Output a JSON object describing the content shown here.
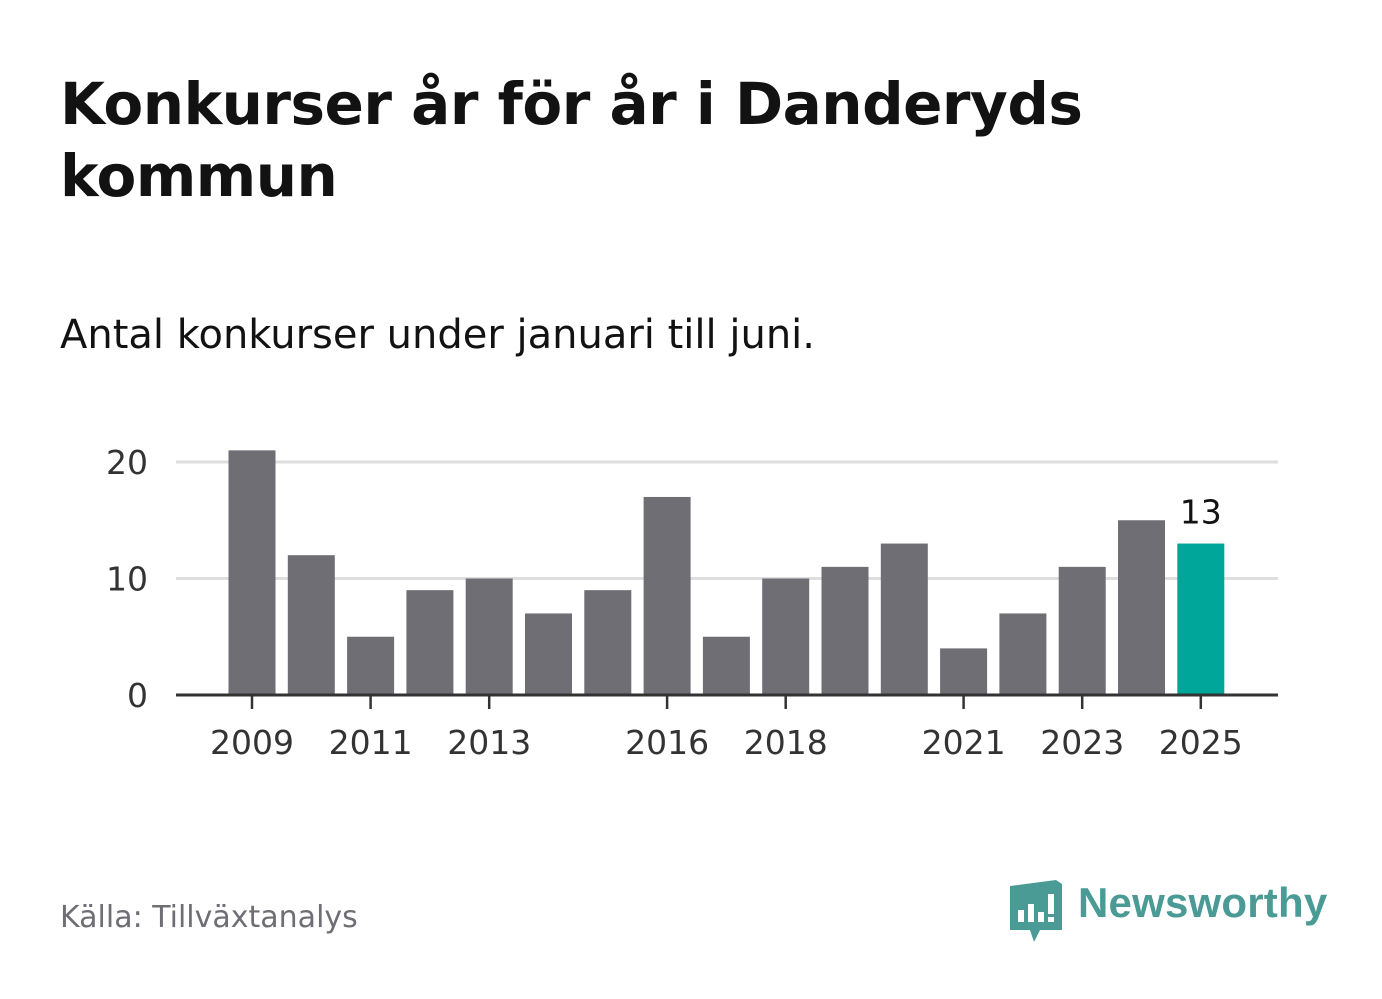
{
  "title": "Konkurser år för år i Danderyds kommun",
  "subtitle": "Antal konkurser under januari till juni.",
  "source": "Källa: Tillväxtanalys",
  "brand": {
    "name": "Newsworthy",
    "icon": "newsworthy-logo-icon"
  },
  "colors": {
    "bar": "#6f6e75",
    "highlight": "#00a69a",
    "grid": "#dedede",
    "axis": "#333333",
    "brand": "#4a9b95"
  },
  "chart_data": {
    "type": "bar",
    "categories": [
      "2009",
      "2010",
      "2011",
      "2012",
      "2013",
      "2014",
      "2015",
      "2016",
      "2017",
      "2018",
      "2019",
      "2020",
      "2021",
      "2022",
      "2023",
      "2024",
      "2025"
    ],
    "values": [
      21,
      12,
      5,
      9,
      10,
      7,
      9,
      17,
      5,
      10,
      11,
      13,
      4,
      7,
      11,
      15,
      13
    ],
    "highlight_index": 16,
    "data_labels": [
      {
        "category": "2025",
        "text": "13"
      }
    ],
    "x_tick_labels": [
      "2009",
      "2011",
      "2013",
      "2016",
      "2018",
      "2021",
      "2023",
      "2025"
    ],
    "y_ticks": [
      0,
      10,
      20
    ],
    "ylim": [
      0,
      21
    ],
    "grid": true,
    "title": "Konkurser år för år i Danderyds kommun",
    "subtitle": "Antal konkurser under januari till juni."
  }
}
